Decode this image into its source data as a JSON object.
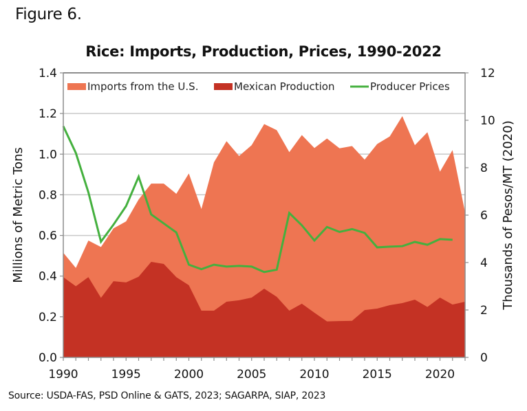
{
  "figure_label": "Figure 6.",
  "source": "Source: USDA-FAS, PSD Online & GATS, 2023; SAGARPA, SIAP, 2023",
  "chart_data": {
    "type": "area",
    "title": "Rice: Imports, Production, Prices, 1990-2022",
    "xlabel": "",
    "ylabel": "Millions of Metric Tons",
    "y2label": "Thousands of Pesos/MT (2020)",
    "xlim": [
      1990,
      2022
    ],
    "ylim": [
      0,
      1.4
    ],
    "y2lim": [
      0,
      12
    ],
    "grid": true,
    "legend_position": "top-inside",
    "x_ticks": [
      "1990",
      "1995",
      "2000",
      "2005",
      "2010",
      "2015",
      "2020"
    ],
    "y_ticks": [
      "0.0",
      "0.2",
      "0.4",
      "0.6",
      "0.8",
      "1.0",
      "1.2",
      "1.4"
    ],
    "y2_ticks": [
      "0",
      "2",
      "4",
      "6",
      "8",
      "10",
      "12"
    ],
    "x": [
      1990,
      1991,
      1992,
      1993,
      1994,
      1995,
      1996,
      1997,
      1998,
      1999,
      2000,
      2001,
      2002,
      2003,
      2004,
      2005,
      2006,
      2007,
      2008,
      2009,
      2010,
      2011,
      2012,
      2013,
      2014,
      2015,
      2016,
      2017,
      2018,
      2019,
      2020,
      2021,
      2022
    ],
    "series": [
      {
        "name": "Imports from the U.S.",
        "kind": "stacked-area",
        "axis": "left",
        "color": "#EE7552",
        "values": [
          0.12,
          0.09,
          0.18,
          0.25,
          0.26,
          0.3,
          0.38,
          0.385,
          0.395,
          0.41,
          0.55,
          0.5,
          0.73,
          0.79,
          0.71,
          0.75,
          0.81,
          0.82,
          0.78,
          0.83,
          0.81,
          0.9,
          0.85,
          0.86,
          0.74,
          0.81,
          0.83,
          0.92,
          0.76,
          0.86,
          0.62,
          0.76,
          0.44
        ]
      },
      {
        "name": "Mexican Production",
        "kind": "stacked-area",
        "axis": "left",
        "color": "#C43224",
        "values": [
          0.395,
          0.35,
          0.395,
          0.293,
          0.375,
          0.369,
          0.397,
          0.47,
          0.46,
          0.395,
          0.355,
          0.23,
          0.23,
          0.274,
          0.281,
          0.294,
          0.338,
          0.298,
          0.23,
          0.264,
          0.22,
          0.177,
          0.179,
          0.18,
          0.233,
          0.24,
          0.257,
          0.267,
          0.284,
          0.248,
          0.294,
          0.26,
          0.274
        ]
      },
      {
        "name": "Producer Prices",
        "kind": "line",
        "axis": "right",
        "color": "#44B03E",
        "values": [
          9.75,
          8.62,
          6.96,
          4.88,
          5.6,
          6.38,
          7.62,
          6.03,
          5.65,
          5.27,
          3.91,
          3.72,
          3.91,
          3.83,
          3.86,
          3.83,
          3.6,
          3.7,
          6.09,
          5.57,
          4.93,
          5.5,
          5.29,
          5.41,
          5.25,
          4.64,
          4.67,
          4.69,
          4.87,
          4.75,
          4.99,
          4.96,
          null
        ]
      }
    ]
  }
}
